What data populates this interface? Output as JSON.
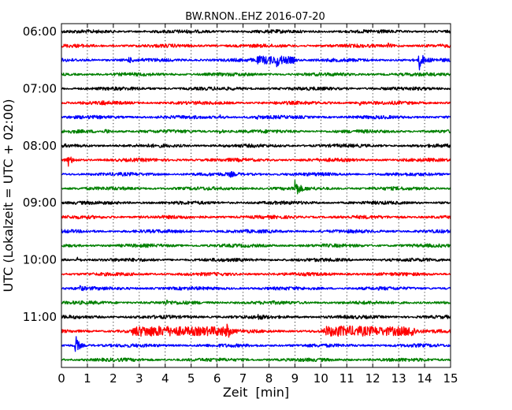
{
  "chart_data": {
    "type": "line",
    "title": "BW.RNON..EHZ 2016-07-20",
    "xlabel": "Zeit  [min]",
    "ylabel": "UTC (Lokalzeit = UTC + 02:00)",
    "xlim": [
      0,
      15
    ],
    "x_ticks": [
      "0",
      "1",
      "2",
      "3",
      "4",
      "5",
      "6",
      "7",
      "8",
      "9",
      "10",
      "11",
      "12",
      "13",
      "14",
      "15"
    ],
    "y_ticks": [
      "06:00",
      "07:00",
      "08:00",
      "09:00",
      "10:00",
      "11:00"
    ],
    "grid": "x-dotted",
    "trace_interval_min": 15,
    "colors": [
      "#000000",
      "#ff0000",
      "#0000ff",
      "#008000"
    ],
    "traces": [
      {
        "start": "06:00",
        "color": "#000000",
        "events": []
      },
      {
        "start": "06:15",
        "color": "#ff0000",
        "events": [
          {
            "t": 12.6,
            "amp": 0.3
          }
        ]
      },
      {
        "start": "06:30",
        "color": "#0000ff",
        "events": [
          {
            "t": 2.6,
            "amp": 0.35
          },
          {
            "t": 7.6,
            "amp": 0.45,
            "dur": 1.3
          },
          {
            "t": 8.3,
            "amp": 0.6
          },
          {
            "t": 13.8,
            "amp": 1.6
          }
        ]
      },
      {
        "start": "06:45",
        "color": "#008000",
        "events": []
      },
      {
        "start": "07:00",
        "color": "#000000",
        "events": []
      },
      {
        "start": "07:15",
        "color": "#ff0000",
        "events": [
          {
            "t": 1.6,
            "amp": 0.25
          },
          {
            "t": 11.5,
            "amp": 0.3
          }
        ]
      },
      {
        "start": "07:30",
        "color": "#0000ff",
        "events": [
          {
            "t": 6.1,
            "amp": 0.3
          },
          {
            "t": 7.5,
            "amp": 0.3
          }
        ]
      },
      {
        "start": "07:45",
        "color": "#008000",
        "events": [
          {
            "t": 1.7,
            "amp": 0.35
          },
          {
            "t": 6.1,
            "amp": 0.3
          }
        ]
      },
      {
        "start": "08:00",
        "color": "#000000",
        "events": []
      },
      {
        "start": "08:15",
        "color": "#ff0000",
        "events": [
          {
            "t": 0.25,
            "amp": 1.0
          }
        ]
      },
      {
        "start": "08:30",
        "color": "#0000ff",
        "events": [
          {
            "t": 6.5,
            "amp": 0.35
          }
        ]
      },
      {
        "start": "08:45",
        "color": "#008000",
        "events": [
          {
            "t": 9.0,
            "amp": 1.8
          }
        ]
      },
      {
        "start": "09:00",
        "color": "#000000",
        "events": []
      },
      {
        "start": "09:15",
        "color": "#ff0000",
        "events": []
      },
      {
        "start": "09:30",
        "color": "#0000ff",
        "events": []
      },
      {
        "start": "09:45",
        "color": "#008000",
        "events": []
      },
      {
        "start": "10:00",
        "color": "#000000",
        "events": [
          {
            "t": 0.6,
            "amp": 0.35
          }
        ]
      },
      {
        "start": "10:15",
        "color": "#ff0000",
        "events": []
      },
      {
        "start": "10:30",
        "color": "#0000ff",
        "events": [
          {
            "t": 0.7,
            "amp": 0.35
          }
        ]
      },
      {
        "start": "10:45",
        "color": "#008000",
        "events": [
          {
            "t": 4.0,
            "amp": 0.3
          }
        ]
      },
      {
        "start": "11:00",
        "color": "#000000",
        "events": [
          {
            "t": 7.6,
            "amp": 0.3
          }
        ]
      },
      {
        "start": "11:15",
        "color": "#ff0000",
        "events": [
          {
            "t": 2.8,
            "amp": 0.6,
            "dur": 3.5
          },
          {
            "t": 6.4,
            "amp": 0.9
          },
          {
            "t": 10.2,
            "amp": 0.6,
            "dur": 3.2
          },
          {
            "t": 13.5,
            "amp": 0.8
          }
        ]
      },
      {
        "start": "11:30",
        "color": "#0000ff",
        "events": [
          {
            "t": 0.55,
            "amp": 1.6
          }
        ]
      },
      {
        "start": "11:45",
        "color": "#008000",
        "events": []
      }
    ]
  }
}
